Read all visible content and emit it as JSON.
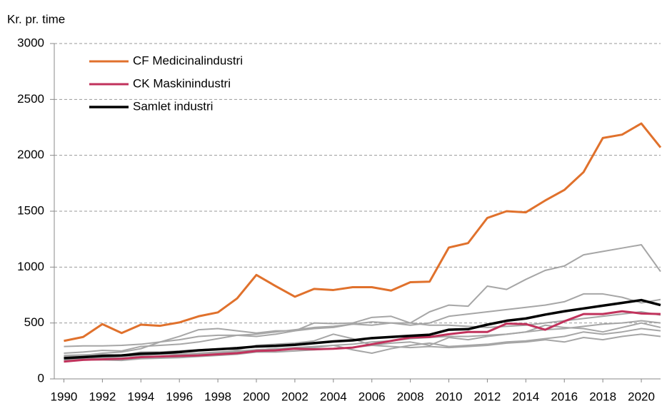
{
  "chart_data": {
    "type": "line",
    "y_axis_label": "Kr. pr. time",
    "x": [
      1990,
      1991,
      1992,
      1993,
      1994,
      1995,
      1996,
      1997,
      1998,
      1999,
      2000,
      2001,
      2002,
      2003,
      2004,
      2005,
      2006,
      2007,
      2008,
      2009,
      2010,
      2011,
      2012,
      2013,
      2014,
      2015,
      2016,
      2017,
      2018,
      2019,
      2020,
      2021
    ],
    "xlim": [
      1989.5,
      2021
    ],
    "xticks": [
      1990,
      1992,
      1994,
      1996,
      1998,
      2000,
      2002,
      2004,
      2006,
      2008,
      2010,
      2012,
      2014,
      2016,
      2018,
      2020
    ],
    "ylim": [
      0,
      3000
    ],
    "yticks": [
      0,
      500,
      1000,
      1500,
      2000,
      2500,
      3000
    ],
    "grid": true,
    "legend": "upper left",
    "series": [
      {
        "color": "#a6a6a6",
        "values": [
          290,
          295,
          295,
          300,
          310,
          330,
          350,
          380,
          390,
          390,
          380,
          400,
          430,
          500,
          495,
          500,
          550,
          560,
          500,
          600,
          660,
          650,
          830,
          800,
          890,
          970,
          1010,
          1110,
          1140,
          1170,
          1200,
          960
        ]
      },
      {
        "color": "#a6a6a6",
        "values": [
          230,
          240,
          255,
          250,
          290,
          300,
          310,
          330,
          360,
          390,
          400,
          420,
          440,
          460,
          470,
          490,
          480,
          500,
          480,
          500,
          560,
          580,
          600,
          620,
          640,
          660,
          690,
          760,
          760,
          730,
          680,
          710
        ]
      },
      {
        "color": "#a6a6a6",
        "values": [
          200,
          210,
          230,
          240,
          270,
          330,
          380,
          440,
          450,
          430,
          410,
          430,
          430,
          450,
          460,
          490,
          510,
          500,
          500,
          480,
          480,
          470,
          460,
          470,
          480,
          500,
          520,
          540,
          560,
          580,
          600,
          570
        ]
      },
      {
        "color": "#a6a6a6",
        "values": [
          210,
          215,
          220,
          210,
          240,
          240,
          250,
          260,
          270,
          260,
          300,
          310,
          320,
          340,
          400,
          360,
          300,
          320,
          330,
          300,
          370,
          350,
          380,
          400,
          420,
          480,
          460,
          450,
          420,
          460,
          500,
          460
        ]
      },
      {
        "color": "#a6a6a6",
        "values": [
          170,
          180,
          190,
          185,
          195,
          200,
          210,
          220,
          230,
          240,
          260,
          270,
          270,
          280,
          300,
          260,
          230,
          270,
          300,
          320,
          290,
          300,
          310,
          330,
          340,
          360,
          380,
          420,
          400,
          420,
          450,
          430
        ]
      },
      {
        "color": "#a6a6a6",
        "values": [
          160,
          170,
          170,
          165,
          180,
          185,
          190,
          200,
          210,
          220,
          240,
          240,
          250,
          260,
          270,
          280,
          300,
          290,
          280,
          290,
          280,
          290,
          300,
          320,
          330,
          350,
          330,
          370,
          350,
          380,
          400,
          380
        ]
      },
      {
        "color": "#a6a6a6",
        "values": [
          180,
          185,
          195,
          200,
          210,
          220,
          220,
          230,
          240,
          250,
          260,
          270,
          280,
          290,
          300,
          310,
          330,
          340,
          360,
          370,
          380,
          380,
          390,
          400,
          420,
          440,
          450,
          470,
          490,
          500,
          520,
          500
        ]
      },
      {
        "name": "CF Medicinalindustri",
        "color": "#e0712c",
        "width": 3,
        "values": [
          340,
          375,
          490,
          410,
          485,
          475,
          505,
          560,
          595,
          720,
          930,
          830,
          735,
          805,
          795,
          820,
          820,
          790,
          865,
          870,
          1175,
          1215,
          1440,
          1500,
          1490,
          1595,
          1690,
          1850,
          2155,
          2185,
          2285,
          2070
        ]
      },
      {
        "name": "CK Maskinindustri",
        "color": "#c1325c",
        "width": 3,
        "values": [
          155,
          170,
          175,
          180,
          195,
          200,
          205,
          210,
          220,
          230,
          250,
          255,
          270,
          265,
          270,
          280,
          310,
          340,
          370,
          375,
          400,
          420,
          420,
          495,
          490,
          440,
          515,
          580,
          580,
          605,
          585,
          580
        ]
      },
      {
        "name": "Samlet industri",
        "color": "#000000",
        "width": 3.5,
        "values": [
          185,
          195,
          205,
          210,
          225,
          230,
          240,
          255,
          265,
          275,
          290,
          295,
          305,
          320,
          335,
          345,
          365,
          375,
          385,
          395,
          440,
          445,
          485,
          520,
          540,
          575,
          605,
          630,
          655,
          680,
          705,
          660
        ]
      }
    ]
  }
}
